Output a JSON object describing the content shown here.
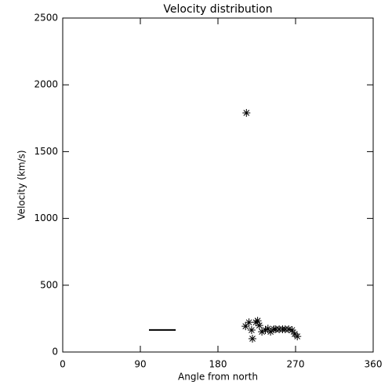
{
  "chart_data": {
    "type": "scatter",
    "title": "Velocity distribution",
    "x_label": "Angle from north",
    "y_label": "Velocity (km/s)",
    "xlim": [
      0,
      360
    ],
    "xticks": [
      0,
      90,
      180,
      270,
      360
    ],
    "ylim": [
      0,
      2500
    ],
    "yticks": [
      0,
      500,
      1000,
      1500,
      2000,
      2500
    ],
    "color": "#000000",
    "x": [
      213,
      212,
      216,
      219,
      220,
      224,
      226,
      228,
      231,
      235,
      238,
      241,
      245,
      247,
      251,
      255,
      258,
      262,
      266,
      269,
      272
    ],
    "y": [
      1790,
      193,
      222,
      164,
      100,
      222,
      234,
      199,
      152,
      164,
      175,
      152,
      170,
      170,
      170,
      170,
      170,
      170,
      164,
      135,
      117
    ],
    "segment": {
      "x": [
        100,
        131
      ],
      "y": [
        165,
        165
      ]
    }
  }
}
